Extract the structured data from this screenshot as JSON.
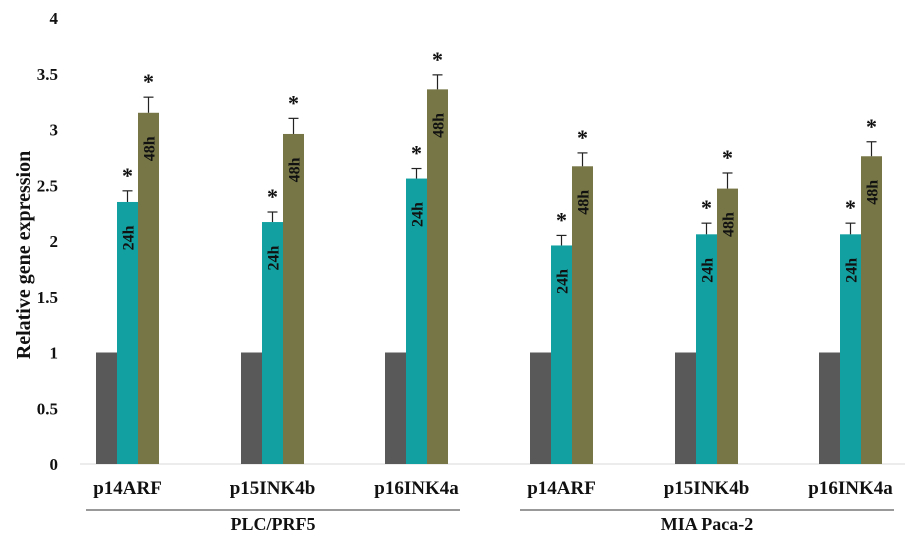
{
  "chart_data": {
    "type": "bar",
    "ylabel": "Relative gene expression",
    "ylim": [
      0,
      4
    ],
    "yticks": [
      "0",
      "0.5",
      "1",
      "1.5",
      "2",
      "2.5",
      "3",
      "3.5",
      "4"
    ],
    "grid": false,
    "groups": [
      {
        "label": "PLC/PRF5",
        "categories": [
          {
            "label": "p14ARF",
            "values": [
              1,
              2.35,
              3.15
            ],
            "errors": [
              0,
              0.1,
              0.14
            ],
            "significant": [
              false,
              true,
              true
            ]
          },
          {
            "label": "p15INK4b",
            "values": [
              1,
              2.17,
              2.96
            ],
            "errors": [
              0,
              0.09,
              0.14
            ],
            "significant": [
              false,
              true,
              true
            ]
          },
          {
            "label": "p16INK4a",
            "values": [
              1,
              2.56,
              3.36
            ],
            "errors": [
              0,
              0.09,
              0.13
            ],
            "significant": [
              false,
              true,
              true
            ]
          }
        ]
      },
      {
        "label": "MIA Paca-2",
        "categories": [
          {
            "label": "p14ARF",
            "values": [
              1,
              1.96,
              2.67
            ],
            "errors": [
              0,
              0.09,
              0.12
            ],
            "significant": [
              false,
              true,
              true
            ]
          },
          {
            "label": "p15INK4b",
            "values": [
              1,
              2.06,
              2.47
            ],
            "errors": [
              0,
              0.1,
              0.14
            ],
            "significant": [
              false,
              true,
              true
            ]
          },
          {
            "label": "p16INK4a",
            "values": [
              1,
              2.06,
              2.76
            ],
            "errors": [
              0,
              0.1,
              0.13
            ],
            "significant": [
              false,
              true,
              true
            ]
          }
        ]
      }
    ],
    "series": [
      {
        "name": "",
        "color": "#595959"
      },
      {
        "name": "24h",
        "color": "#13a0a0"
      },
      {
        "name": "48h",
        "color": "#767647"
      }
    ],
    "significance_marker": "*"
  }
}
